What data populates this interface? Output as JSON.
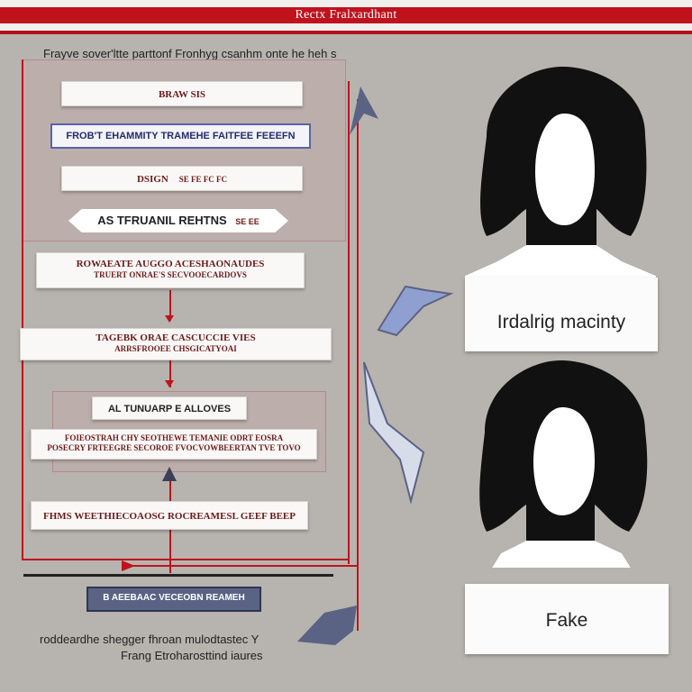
{
  "header": {
    "title": "Rectx Fralxardhant"
  },
  "subtitle": "Frayve sover'ltte parttonf Fronhyg csanhm onte he heh s",
  "flow": {
    "box1": "Braw sis",
    "box2": "FROB'T EHAMMITY TRAMEHE FAITFEE FEEEFN",
    "box3_main": "DSIGN",
    "box3_sub": "SE FE FC FC",
    "pill_main": "AS TFRUANIL REHTNS",
    "pill_sub": "SE EE",
    "box5_line1": "ROWAEATE AUGGO ACESHAONAUDES",
    "box5_line2": "TRUERT ONRAE'S SECVOOECARDOVS",
    "box6_line1": "TAGEBK ORAE CASCUCCIE VIES",
    "box6_line2": "ARRSFROOEE CHSGICATYOAI",
    "box7": "AL TUNUARP E ALLOVES",
    "box8_line1": "FOIEOSTRAH CHY SEOTHEWE TEMANIE ODRT EOSRA",
    "box8_line2": "POSECRY FRTEEGRE SECOROE FVOCVOWBEERTAN TVE TOVO",
    "box9": "FHMS WEETHIECOAOSG ROCREAMESL GEEF BEEP",
    "blue_button": "B AEEBAAC VECEOBN REAMEH"
  },
  "bottom": {
    "line1": "roddeardhe shegger fhroan mulodtastec Y",
    "line2": "Frang Etroharosttind iaures"
  },
  "cards": {
    "top": "Irdalrig macinty",
    "bottom": "Fake"
  },
  "colors": {
    "accent": "#c0121d",
    "background": "#b7b3ae",
    "arrow_blue": "#5a6384"
  },
  "icons": [
    "person-silhouette-icon",
    "arrow-icon"
  ]
}
